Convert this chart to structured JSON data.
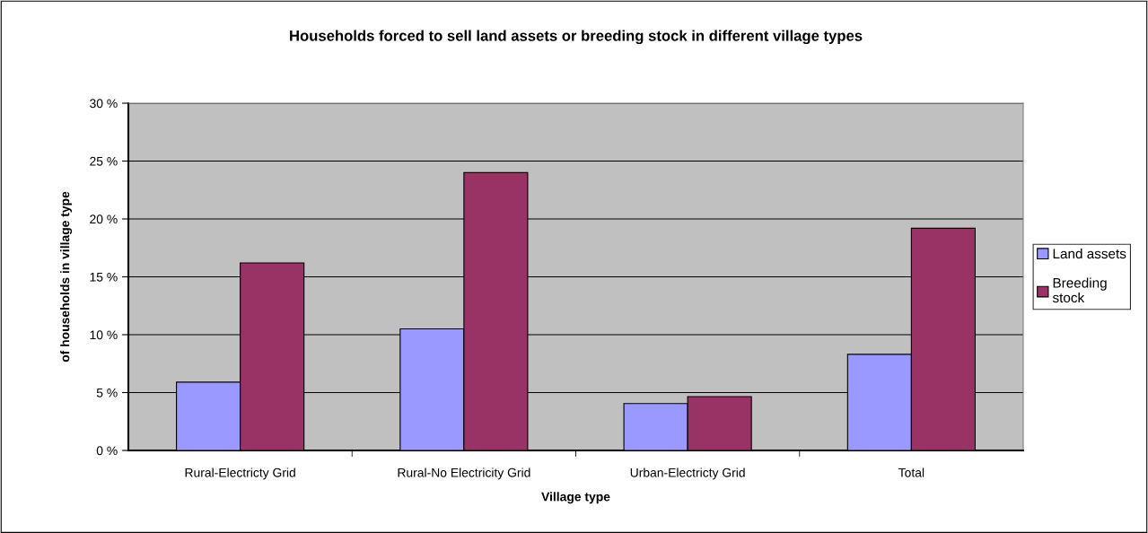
{
  "chart_data": {
    "type": "bar",
    "title": "Households forced to sell land assets or breeding stock in different village types",
    "xlabel": "Village type",
    "ylabel": "of households in village type",
    "categories": [
      "Rural-Electricty Grid",
      "Rural-No Electricity Grid",
      "Urban-Electricty Grid",
      "Total"
    ],
    "series": [
      {
        "name": "Land assets",
        "color": "#9999ff",
        "values": [
          5.9,
          10.5,
          4.05,
          8.3
        ]
      },
      {
        "name": "Breeding\nstock",
        "color": "#993366",
        "values": [
          16.2,
          24.0,
          4.65,
          19.2
        ]
      }
    ],
    "ylim": [
      0,
      30
    ],
    "yticks": [
      {
        "value": 0,
        "label": "0 %"
      },
      {
        "value": 5,
        "label": "5 %"
      },
      {
        "value": 10,
        "label": "10 %"
      },
      {
        "value": 15,
        "label": "15 %"
      },
      {
        "value": 20,
        "label": "20 %"
      },
      {
        "value": 25,
        "label": "25 %"
      },
      {
        "value": 30,
        "label": "30 %"
      }
    ],
    "grid": "y",
    "legend": "right"
  }
}
